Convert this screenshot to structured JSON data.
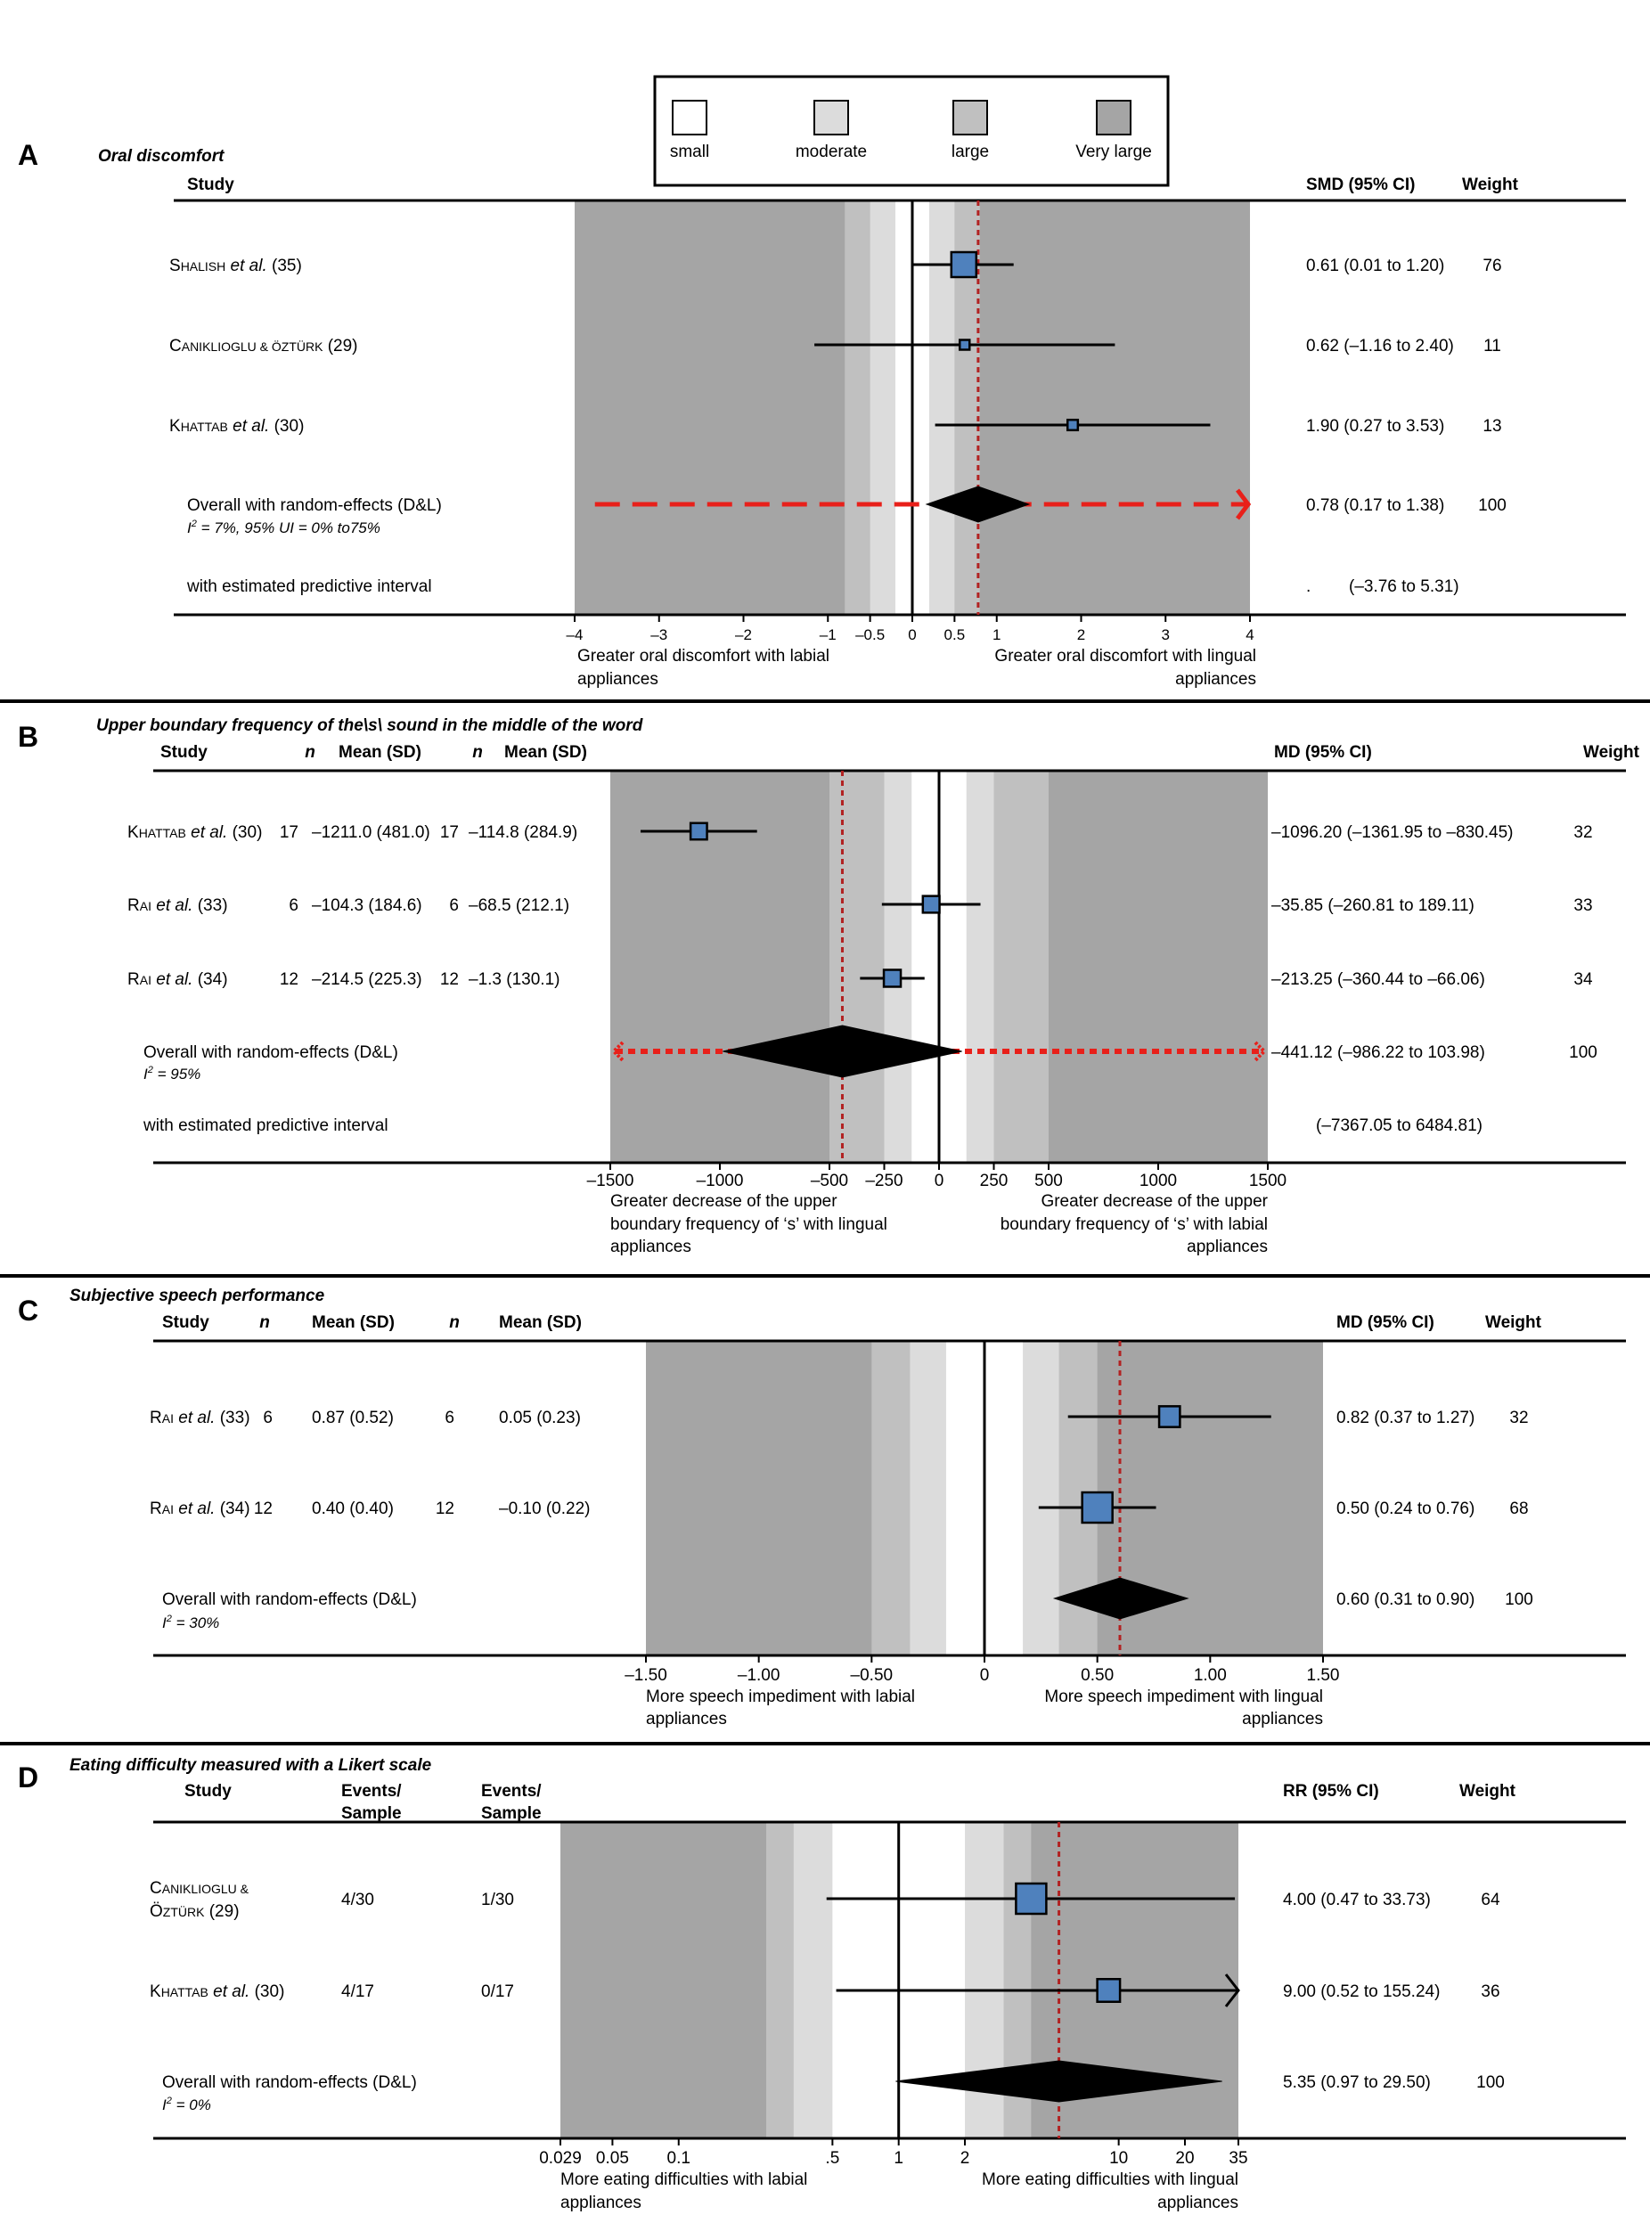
{
  "legend": {
    "title": "",
    "items": [
      {
        "label": "small",
        "color": "#ffffff"
      },
      {
        "label": "moderate",
        "color": "#dcdcdc"
      },
      {
        "label": "large",
        "color": "#c0c0c0"
      },
      {
        "label": "Very large",
        "color": "#a5a5a5"
      }
    ]
  },
  "colors": {
    "small": "#ffffff",
    "moderate": "#dcdcdc",
    "large": "#c0c0c0",
    "very_large": "#a5a5a5",
    "square": "#4f81bd",
    "pooled_line": "#b22222",
    "prediction_interval": "#e8201a",
    "diamond": "#000000"
  },
  "chart_data": [
    {
      "type": "forest",
      "panel_letter": "A",
      "title": "Oral discomfort",
      "columns": {
        "study": "Study",
        "effect": "SMD (95% CI)",
        "weight": "Weight"
      },
      "xlim": [
        -4,
        4
      ],
      "xticks": [
        -4,
        -3,
        -2,
        -1,
        -0.5,
        0,
        0.5,
        1,
        2,
        3,
        4
      ],
      "tick_labels": [
        "–4",
        "–3",
        "–2",
        "–1",
        "–0.5",
        "0",
        "0.5",
        "1",
        "2",
        "3",
        "4"
      ],
      "bands": {
        "small": [
          -0.2,
          0.2
        ],
        "moderate": [
          -0.5,
          0.5
        ],
        "large": [
          -0.8,
          0.8
        ]
      },
      "pooled_line": 0.78,
      "xlabel_left": [
        "Greater oral discomfort with labial",
        "appliances"
      ],
      "xlabel_right": [
        "Greater oral discomfort with lingual",
        "appliances"
      ],
      "studies": [
        {
          "name_sc": "Shalish",
          "name_rest": " et al. (35)",
          "est": 0.61,
          "lo": 0.01,
          "hi": 1.2,
          "ci": "0.61 (0.01 to 1.20)",
          "weight": "76",
          "weight_num": 76
        },
        {
          "name_sc": "Caniklioglu & Öztürk",
          "name_rest": " (29)",
          "est": 0.62,
          "lo": -1.16,
          "hi": 2.4,
          "ci": "0.62 (–1.16 to 2.40)",
          "weight": "11",
          "weight_num": 11
        },
        {
          "name_sc": "Khattab",
          "name_rest": " et al. (30)",
          "est": 1.9,
          "lo": 0.27,
          "hi": 3.53,
          "ci": "1.90 (0.27 to 3.53)",
          "weight": "13",
          "weight_num": 13
        }
      ],
      "overall": {
        "label": "Overall with random-effects (D&L)",
        "het": "I² = 7%, 95% UI = 0% to75%",
        "est": 0.78,
        "lo": 0.17,
        "hi": 1.38,
        "ci": "0.78 (0.17 to 1.38)",
        "weight": "100"
      },
      "prediction": {
        "label": "with estimated predictive interval",
        "lo": -3.76,
        "hi": 5.31,
        "ci_prefix": ".",
        "ci": "(–3.76 to 5.31)"
      }
    },
    {
      "type": "forest",
      "panel_letter": "B",
      "title": "Upper boundary frequency of the\\s\\ sound in the middle of the word",
      "columns": {
        "study": "Study",
        "n": "n",
        "mean": "Mean (SD)",
        "effect": "MD (95% CI)",
        "weight": "Weight"
      },
      "xlim": [
        -1500,
        1500
      ],
      "xticks": [
        -1500,
        -1000,
        -500,
        -250,
        0,
        250,
        500,
        1000,
        1500
      ],
      "tick_labels": [
        "–1500",
        "–1000",
        "–500",
        "–250",
        "0",
        "250",
        "500",
        "1000",
        "1500"
      ],
      "bands": {
        "small": [
          -125,
          125
        ],
        "moderate": [
          -250,
          250
        ],
        "large": [
          -500,
          500
        ]
      },
      "pooled_line": -441.12,
      "xlabel_left": [
        "Greater decrease of the upper",
        "boundary frequency of ‘s’ with lingual",
        "appliances"
      ],
      "xlabel_right": [
        "Greater decrease of the upper",
        "boundary frequency of ‘s’ with labial",
        "appliances"
      ],
      "studies": [
        {
          "name_sc": "Khattab",
          "name_rest": " et al. (30)",
          "n1": "17",
          "m1": "–1211.0 (481.0)",
          "n2": "17",
          "m2": "–114.8 (284.9)",
          "est": -1096.2,
          "lo": -1361.95,
          "hi": -830.45,
          "ci": "–1096.20 (–1361.95 to –830.45)",
          "weight": "32",
          "weight_num": 32
        },
        {
          "name_sc": "Rai",
          "name_rest": " et al. (33)",
          "n1": "6",
          "m1": "–104.3 (184.6)",
          "n2": "6",
          "m2": "–68.5 (212.1)",
          "est": -35.85,
          "lo": -260.81,
          "hi": 189.11,
          "ci": "–35.85 (–260.81 to 189.11)",
          "weight": "33",
          "weight_num": 33
        },
        {
          "name_sc": "Rai",
          "name_rest": " et al. (34)",
          "n1": "12",
          "m1": "–214.5 (225.3)",
          "n2": "12",
          "m2": "–1.3 (130.1)",
          "est": -213.25,
          "lo": -360.44,
          "hi": -66.06,
          "ci": "–213.25 (–360.44 to –66.06)",
          "weight": "34",
          "weight_num": 34
        }
      ],
      "overall": {
        "label": "Overall with random-effects (D&L)",
        "het": "I² = 95%",
        "est": -441.12,
        "lo": -986.22,
        "hi": 103.98,
        "ci": "–441.12 (–986.22 to 103.98)",
        "weight": "100"
      },
      "prediction": {
        "label": "with estimated predictive interval",
        "lo": -7367.05,
        "hi": 6484.81,
        "ci_prefix": "",
        "ci": "(–7367.05 to 6484.81)"
      }
    },
    {
      "type": "forest",
      "panel_letter": "C",
      "title": "Subjective speech performance",
      "columns": {
        "study": "Study",
        "n": "n",
        "mean": "Mean (SD)",
        "effect": "MD (95% CI)",
        "weight": "Weight"
      },
      "xlim": [
        -1.5,
        1.5
      ],
      "xticks": [
        -1.5,
        -1.0,
        -0.5,
        0,
        0.5,
        1.0,
        1.5
      ],
      "tick_labels": [
        "–1.50",
        "–1.00",
        "–0.50",
        "0",
        "0.50",
        "1.00",
        "1.50"
      ],
      "bands": {
        "small": [
          -0.17,
          0.17
        ],
        "moderate": [
          -0.33,
          0.33
        ],
        "large": [
          -0.5,
          0.5
        ]
      },
      "pooled_line": 0.6,
      "xlabel_left": [
        "More speech impediment with labial",
        "appliances"
      ],
      "xlabel_right": [
        "More speech impediment with lingual",
        "appliances"
      ],
      "studies": [
        {
          "name_sc": "Rai",
          "name_rest": " et al. (33)",
          "n1": "6",
          "m1": "0.87 (0.52)",
          "n2": "6",
          "m2": "0.05 (0.23)",
          "est": 0.82,
          "lo": 0.37,
          "hi": 1.27,
          "ci": "0.82 (0.37 to 1.27)",
          "weight": "32",
          "weight_num": 32
        },
        {
          "name_sc": "Rai",
          "name_rest": " et al. (34)",
          "n1": "12",
          "m1": "0.40 (0.40)",
          "n2": "12",
          "m2": "–0.10 (0.22)",
          "est": 0.5,
          "lo": 0.24,
          "hi": 0.76,
          "ci": "0.50 (0.24 to 0.76)",
          "weight": "68",
          "weight_num": 68
        }
      ],
      "overall": {
        "label": "Overall with random-effects (D&L)",
        "het": "I² = 30%",
        "est": 0.6,
        "lo": 0.31,
        "hi": 0.9,
        "ci": "0.60 (0.31 to 0.90)",
        "weight": "100"
      }
    },
    {
      "type": "forest",
      "panel_letter": "D",
      "title": "Eating difficulty measured with a Likert scale",
      "columns": {
        "study": "Study",
        "events1": [
          "Events/",
          "Sample"
        ],
        "events2": [
          "Events/",
          "Sample"
        ],
        "effect": "RR (95% CI)",
        "weight": "Weight"
      },
      "xscale": "log",
      "xlim": [
        0.029,
        35
      ],
      "xticks": [
        0.029,
        0.05,
        0.1,
        0.5,
        1,
        2,
        10,
        20,
        35
      ],
      "tick_labels": [
        "0.029",
        "0.05",
        "0.1",
        ".5",
        "1",
        "2",
        "10",
        "20",
        "35"
      ],
      "bands": {
        "small": [
          0.5,
          2.0
        ],
        "moderate": [
          0.333,
          3.0
        ],
        "large": [
          0.25,
          4.0
        ]
      },
      "pooled_line": 5.35,
      "xlabel_left": [
        "More eating difficulties with labial",
        "appliances"
      ],
      "xlabel_right": [
        "More eating difficulties with lingual",
        "appliances"
      ],
      "studies": [
        {
          "name_sc": "Caniklioglu &",
          "name_rest": "",
          "name_line2_sc": "Öztürk",
          "name_line2_rest": " (29)",
          "events1": "4/30",
          "events2": "1/30",
          "est": 4.0,
          "lo": 0.47,
          "hi": 33.73,
          "ci": "4.00 (0.47 to 33.73)",
          "weight": "64",
          "weight_num": 64
        },
        {
          "name_sc": "Khattab",
          "name_rest": " et al. (30)",
          "events1": "4/17",
          "events2": "0/17",
          "est": 9.0,
          "lo": 0.52,
          "hi": 155.24,
          "ci": "9.00 (0.52 to 155.24)",
          "weight": "36",
          "weight_num": 36
        }
      ],
      "overall": {
        "label": "Overall with random-effects (D&L)",
        "het": "I² = 0%",
        "est": 5.35,
        "lo": 0.97,
        "hi": 29.5,
        "ci": "5.35 (0.97 to 29.50)",
        "weight": "100"
      }
    }
  ]
}
